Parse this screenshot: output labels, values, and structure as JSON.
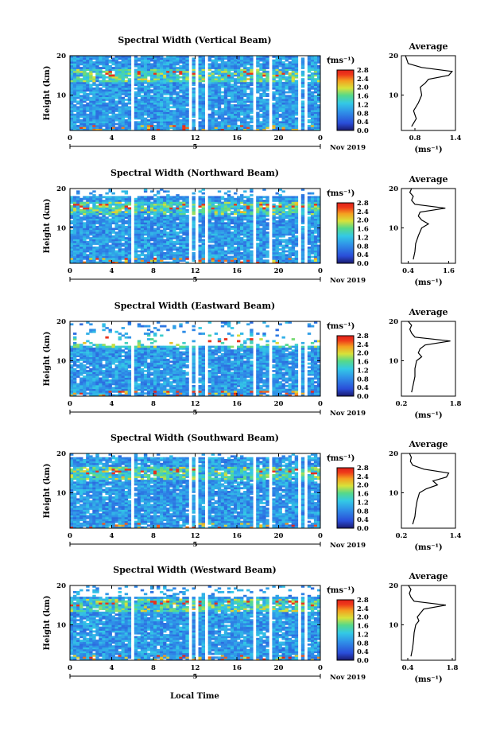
{
  "figure": {
    "x_axis_label": "Local Time",
    "date_label": "Nov 2019",
    "day_marker": "5",
    "cbar_unit": "(ms⁻¹)",
    "avg_title": "Average",
    "avg_xlabel": "(ms⁻¹)",
    "y_label": "Height (km)"
  },
  "chart_data": [
    {
      "type": "heatmap",
      "title": "Spectral Width (Vertical Beam)",
      "ylabel": "Height (km)",
      "x_ticks": [
        "0",
        "4",
        "8",
        "12",
        "16",
        "20",
        "0"
      ],
      "x_range": [
        0,
        24
      ],
      "y_ticks": [
        "10",
        "20"
      ],
      "y_range": [
        1,
        20
      ],
      "colorbar": {
        "unit": "(ms⁻¹)",
        "range": [
          0.0,
          2.8
        ],
        "ticks": [
          "0.0",
          "0.4",
          "0.8",
          "1.2",
          "1.6",
          "2.0",
          "2.4",
          "2.8"
        ]
      },
      "top_km": 20,
      "average_profile": {
        "title": "Average",
        "xlabel": "(ms⁻¹)",
        "x_ticks": [
          "0.8",
          "1.4"
        ],
        "x_range": [
          0.6,
          1.4
        ],
        "heights_km": [
          2,
          4,
          6,
          8,
          10,
          12,
          13,
          14,
          15,
          16,
          17,
          18,
          19,
          20
        ],
        "values": [
          0.75,
          0.82,
          0.78,
          0.85,
          0.9,
          0.88,
          0.95,
          1.0,
          1.3,
          1.35,
          0.9,
          0.7,
          0.68,
          0.66
        ]
      }
    },
    {
      "type": "heatmap",
      "title": "Spectral Width (Northward Beam)",
      "ylabel": "Height (km)",
      "x_ticks": [
        "0",
        "4",
        "8",
        "12",
        "16",
        "20",
        "0"
      ],
      "x_range": [
        0,
        24
      ],
      "y_ticks": [
        "10",
        "20"
      ],
      "y_range": [
        1,
        20
      ],
      "colorbar": {
        "unit": "(ms⁻¹)",
        "range": [
          0.0,
          2.8
        ],
        "ticks": [
          "0.0",
          "0.4",
          "0.8",
          "1.2",
          "1.6",
          "2.0",
          "2.4",
          "2.8"
        ]
      },
      "top_km": 18,
      "average_profile": {
        "title": "Average",
        "xlabel": "(ms⁻¹)",
        "x_ticks": [
          "0.4",
          "1.6"
        ],
        "x_range": [
          0.2,
          1.8
        ],
        "heights_km": [
          2,
          4,
          6,
          8,
          10,
          11,
          12,
          13,
          14,
          15,
          16,
          17,
          18,
          19,
          20
        ],
        "values": [
          0.55,
          0.6,
          0.62,
          0.7,
          0.8,
          1.0,
          0.8,
          0.7,
          0.75,
          1.5,
          0.6,
          0.5,
          0.55,
          0.45,
          0.5
        ]
      }
    },
    {
      "type": "heatmap",
      "title": "Spectral Width (Eastward Beam)",
      "ylabel": "Height (km)",
      "x_ticks": [
        "0",
        "4",
        "8",
        "12",
        "16",
        "20",
        "0"
      ],
      "x_range": [
        0,
        24
      ],
      "y_ticks": [
        "10",
        "20"
      ],
      "y_range": [
        1,
        20
      ],
      "colorbar": {
        "unit": "(ms⁻¹)",
        "range": [
          0.0,
          2.8
        ],
        "ticks": [
          "0.0",
          "0.4",
          "0.8",
          "1.2",
          "1.6",
          "2.0",
          "2.4",
          "2.8"
        ]
      },
      "top_km": 14,
      "average_profile": {
        "title": "Average",
        "xlabel": "(ms⁻¹)",
        "x_ticks": [
          "0.2",
          "1.8"
        ],
        "x_range": [
          0.2,
          1.8
        ],
        "heights_km": [
          2,
          4,
          6,
          8,
          10,
          11,
          12,
          13,
          14,
          15,
          16,
          17,
          18,
          19,
          20
        ],
        "values": [
          0.5,
          0.55,
          0.6,
          0.6,
          0.65,
          0.8,
          0.7,
          0.75,
          0.9,
          1.65,
          0.6,
          0.5,
          0.45,
          0.5,
          0.4
        ]
      }
    },
    {
      "type": "heatmap",
      "title": "Spectral Width (Southward Beam)",
      "ylabel": "Height (km)",
      "x_ticks": [
        "0",
        "4",
        "8",
        "12",
        "16",
        "20",
        "0"
      ],
      "x_range": [
        0,
        24
      ],
      "y_ticks": [
        "10",
        "20"
      ],
      "y_range": [
        1,
        20
      ],
      "colorbar": {
        "unit": "(ms⁻¹)",
        "range": [
          0.0,
          2.8
        ],
        "ticks": [
          "0.0",
          "0.4",
          "0.8",
          "1.2",
          "1.6",
          "2.0",
          "2.4",
          "2.8"
        ]
      },
      "top_km": 19,
      "average_profile": {
        "title": "Average",
        "xlabel": "(ms⁻¹)",
        "x_ticks": [
          "0.2",
          "1.4"
        ],
        "x_range": [
          0.2,
          1.4
        ],
        "heights_km": [
          2,
          4,
          6,
          8,
          10,
          11,
          12,
          13,
          14,
          15,
          16,
          17,
          18,
          19,
          20
        ],
        "values": [
          0.45,
          0.5,
          0.52,
          0.55,
          0.6,
          0.75,
          1.0,
          0.9,
          1.2,
          1.25,
          0.7,
          0.45,
          0.4,
          0.42,
          0.38
        ]
      }
    },
    {
      "type": "heatmap",
      "title": "Spectral Width (Westward Beam)",
      "ylabel": "Height (km)",
      "x_ticks": [
        "0",
        "4",
        "8",
        "12",
        "16",
        "20",
        "0"
      ],
      "x_range": [
        0,
        24
      ],
      "y_ticks": [
        "10",
        "20"
      ],
      "y_range": [
        1,
        20
      ],
      "colorbar": {
        "unit": "(ms⁻¹)",
        "range": [
          0.0,
          2.8
        ],
        "ticks": [
          "0.0",
          "0.4",
          "0.8",
          "1.2",
          "1.6",
          "2.0",
          "2.4",
          "2.8"
        ]
      },
      "top_km": 17,
      "average_profile": {
        "title": "Average",
        "xlabel": "(ms⁻¹)",
        "x_ticks": [
          "0.4",
          "1.8"
        ],
        "x_range": [
          0.2,
          1.9
        ],
        "heights_km": [
          2,
          4,
          6,
          8,
          10,
          11,
          12,
          13,
          14,
          15,
          16,
          17,
          18,
          19,
          20
        ],
        "values": [
          0.5,
          0.55,
          0.58,
          0.6,
          0.65,
          0.75,
          0.7,
          0.8,
          0.9,
          1.6,
          0.6,
          0.5,
          0.45,
          0.5,
          0.42
        ]
      }
    }
  ]
}
